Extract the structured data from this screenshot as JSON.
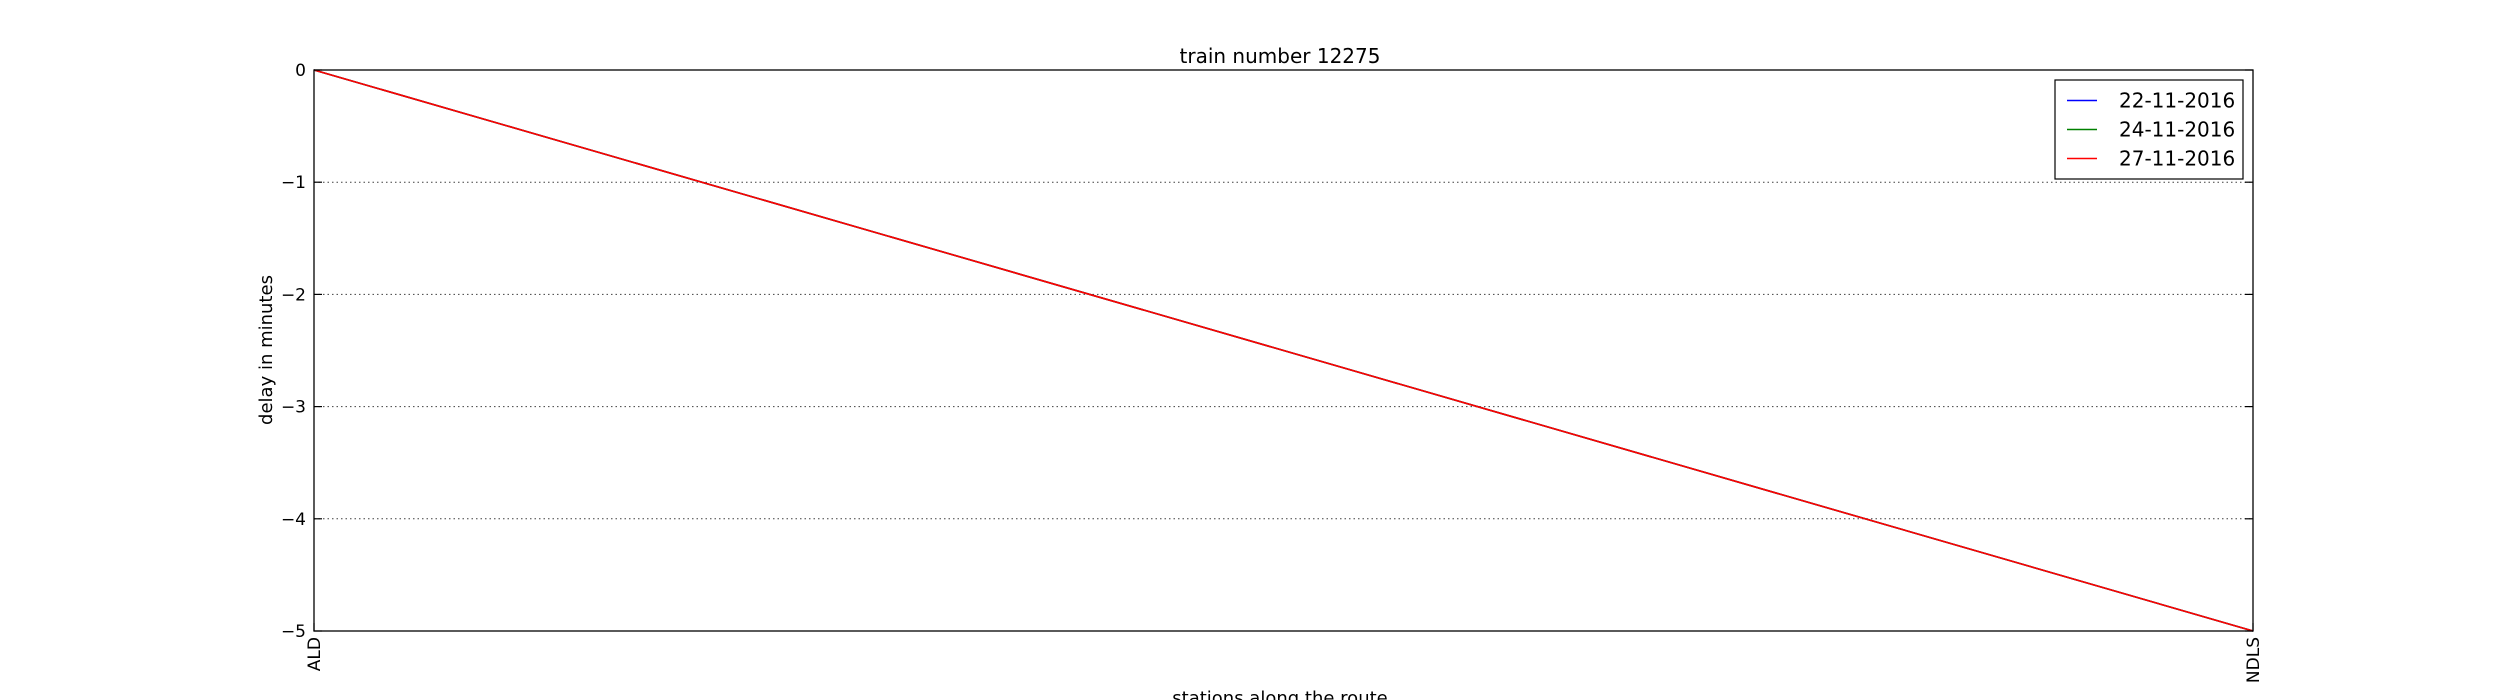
{
  "chart_data": {
    "type": "line",
    "title": "train number 12275",
    "xlabel": "stations along the route",
    "ylabel": "delay in minutes",
    "categories": [
      "ALD",
      "NDLS"
    ],
    "ylim": [
      -5,
      0
    ],
    "yticks": [
      0,
      -1,
      -2,
      -3,
      -4,
      -5
    ],
    "ytick_labels": [
      "0",
      "−1",
      "−2",
      "−3",
      "−4",
      "−5"
    ],
    "grid": "horizontal dotted",
    "legend_position": "top-right",
    "series": [
      {
        "name": "22-11-2016",
        "color": "#0000ff",
        "values": [
          0,
          -5
        ]
      },
      {
        "name": "24-11-2016",
        "color": "#008000",
        "values": [
          0,
          -5
        ]
      },
      {
        "name": "27-11-2016",
        "color": "#ff0000",
        "values": [
          0,
          -5
        ]
      }
    ]
  }
}
